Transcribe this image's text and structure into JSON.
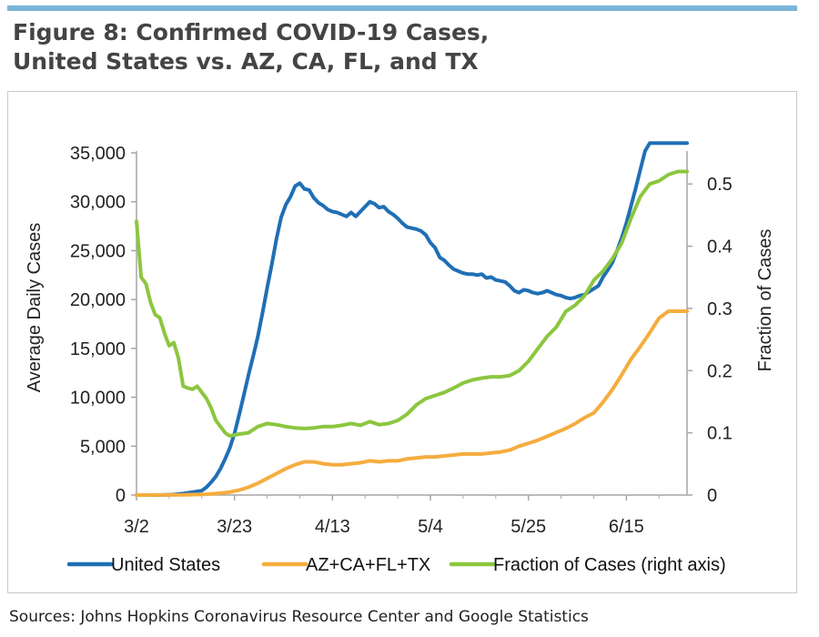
{
  "title": {
    "line1": "Figure 8: Confirmed COVID-19 Cases,",
    "line2": "United States vs. AZ, CA, FL, and TX"
  },
  "source": "Sources: Johns Hopkins Coronavirus Resource Center and Google Statistics",
  "chart_data": {
    "type": "line",
    "title": "Figure 8: Confirmed COVID-19 Cases, United States vs. AZ, CA, FL, and TX",
    "xlabel": "",
    "ylabel": "Average Daily Cases",
    "y2label": "Fraction of Cases",
    "x_tick_labels": [
      "3/2",
      "3/23",
      "4/13",
      "5/4",
      "5/25",
      "6/15"
    ],
    "x_tick_days": [
      0,
      21,
      42,
      63,
      84,
      105
    ],
    "xlim": [
      0,
      118
    ],
    "ylim": [
      0,
      35000
    ],
    "y_ticks": [
      0,
      5000,
      10000,
      15000,
      20000,
      25000,
      30000,
      35000
    ],
    "y_tick_labels": [
      "0",
      "5,000",
      "10,000",
      "15,000",
      "20,000",
      "25,000",
      "30,000",
      "35,000"
    ],
    "y2lim": [
      0,
      0.55
    ],
    "y2_ticks": [
      0,
      0.1,
      0.2,
      0.3,
      0.4,
      0.5
    ],
    "y2_tick_labels": [
      "0",
      "0.1",
      "0.2",
      "0.3",
      "0.4",
      "0.5"
    ],
    "grid": false,
    "legend": "bottom",
    "series": [
      {
        "name": "United States",
        "axis": "left",
        "color": "#1f6fb5",
        "x": [
          0,
          5,
          8,
          10,
          12,
          14,
          15,
          16,
          17,
          18,
          19,
          20,
          21,
          22,
          23,
          24,
          25,
          26,
          27,
          28,
          29,
          30,
          31,
          32,
          33,
          34,
          35,
          36,
          37,
          38,
          39,
          40,
          41,
          42,
          43,
          44,
          45,
          46,
          47,
          48,
          49,
          50,
          51,
          52,
          53,
          54,
          55,
          56,
          57,
          58,
          59,
          60,
          61,
          62,
          63,
          64,
          65,
          66,
          67,
          68,
          69,
          70,
          71,
          72,
          73,
          74,
          75,
          76,
          77,
          78,
          79,
          80,
          81,
          82,
          83,
          84,
          85,
          86,
          87,
          88,
          89,
          90,
          91,
          92,
          93,
          94,
          95,
          96,
          97,
          98,
          99,
          100,
          101,
          102,
          103,
          104,
          105,
          106,
          107,
          108,
          109,
          110,
          111,
          112,
          113,
          114,
          115,
          116,
          117,
          118
        ],
        "values": [
          0,
          0,
          50,
          150,
          300,
          450,
          800,
          1300,
          1900,
          2700,
          3700,
          4800,
          6300,
          8200,
          10200,
          12300,
          14200,
          16200,
          18600,
          21200,
          23600,
          26200,
          28400,
          29700,
          30500,
          31600,
          31900,
          31300,
          31200,
          30400,
          29900,
          29600,
          29200,
          29000,
          28900,
          28700,
          28500,
          28900,
          28500,
          29000,
          29500,
          30000,
          29800,
          29400,
          29500,
          29000,
          28700,
          28300,
          27800,
          27400,
          27300,
          27200,
          27000,
          26600,
          25800,
          25300,
          24300,
          24000,
          23500,
          23100,
          22900,
          22700,
          22600,
          22600,
          22500,
          22600,
          22200,
          22300,
          22000,
          21900,
          21800,
          21400,
          20900,
          20700,
          21000,
          20900,
          20700,
          20600,
          20700,
          20900,
          20700,
          20500,
          20400,
          20200,
          20100,
          20200,
          20400,
          20500,
          20800,
          21100,
          21400,
          22300,
          23000,
          23800,
          25000,
          26300,
          27800,
          29600,
          31400,
          33300,
          35200,
          36000,
          36000,
          36000,
          36000,
          36000,
          36000,
          36000,
          36000,
          36000
        ]
      },
      {
        "name": "AZ+CA+FL+TX",
        "axis": "left",
        "color": "#f5ad3f",
        "x": [
          0,
          10,
          15,
          17,
          20,
          22,
          24,
          26,
          28,
          30,
          32,
          34,
          36,
          38,
          40,
          42,
          44,
          46,
          48,
          50,
          52,
          54,
          56,
          58,
          60,
          62,
          64,
          66,
          68,
          70,
          72,
          74,
          76,
          78,
          80,
          82,
          84,
          86,
          88,
          90,
          92,
          94,
          96,
          98,
          100,
          102,
          104,
          106,
          108,
          110,
          112,
          114,
          116,
          118
        ],
        "values": [
          0,
          20,
          80,
          150,
          300,
          500,
          800,
          1200,
          1700,
          2200,
          2700,
          3100,
          3400,
          3400,
          3200,
          3100,
          3100,
          3200,
          3300,
          3500,
          3400,
          3500,
          3500,
          3700,
          3800,
          3900,
          3900,
          4000,
          4100,
          4200,
          4200,
          4200,
          4300,
          4400,
          4600,
          5000,
          5300,
          5600,
          6000,
          6400,
          6800,
          7300,
          7900,
          8400,
          9500,
          10800,
          12300,
          13900,
          15200,
          16600,
          18100,
          18800,
          18800,
          18800
        ]
      },
      {
        "name": "Fraction of Cases (right axis)",
        "axis": "right",
        "color": "#8cc63f",
        "x": [
          0,
          1,
          2,
          3,
          4,
          5,
          6,
          7,
          8,
          9,
          10,
          11,
          12,
          13,
          14,
          15,
          16,
          17,
          18,
          19,
          20,
          22,
          24,
          26,
          28,
          30,
          32,
          34,
          36,
          38,
          40,
          42,
          44,
          46,
          48,
          50,
          52,
          54,
          56,
          58,
          60,
          62,
          64,
          66,
          68,
          70,
          72,
          74,
          76,
          78,
          80,
          82,
          84,
          86,
          88,
          90,
          92,
          94,
          96,
          98,
          100,
          102,
          104,
          106,
          108,
          110,
          112,
          114,
          116,
          118
        ],
        "values": [
          0.44,
          0.35,
          0.34,
          0.31,
          0.29,
          0.285,
          0.26,
          0.24,
          0.245,
          0.22,
          0.175,
          0.172,
          0.17,
          0.175,
          0.165,
          0.155,
          0.14,
          0.12,
          0.11,
          0.1,
          0.095,
          0.098,
          0.1,
          0.11,
          0.115,
          0.113,
          0.11,
          0.108,
          0.107,
          0.108,
          0.11,
          0.11,
          0.112,
          0.115,
          0.112,
          0.118,
          0.113,
          0.115,
          0.12,
          0.13,
          0.145,
          0.155,
          0.16,
          0.165,
          0.172,
          0.18,
          0.185,
          0.188,
          0.19,
          0.19,
          0.192,
          0.2,
          0.215,
          0.235,
          0.255,
          0.27,
          0.295,
          0.305,
          0.32,
          0.345,
          0.36,
          0.38,
          0.405,
          0.445,
          0.48,
          0.5,
          0.505,
          0.515,
          0.52,
          0.52
        ]
      }
    ]
  }
}
